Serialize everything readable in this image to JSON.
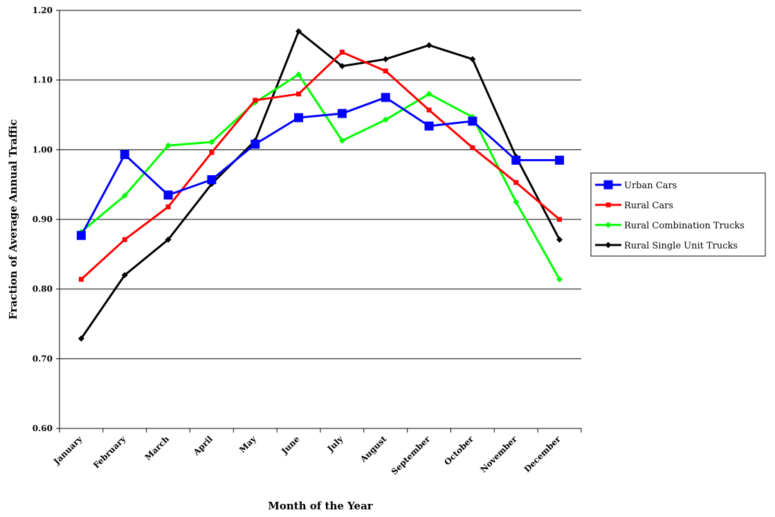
{
  "chart_data": {
    "type": "line",
    "title": "",
    "xlabel": "Month of the Year",
    "ylabel": "Fraction of Average Annual Traffic",
    "categories": [
      "January",
      "February",
      "March",
      "April",
      "May",
      "June",
      "July",
      "August",
      "September",
      "October",
      "November",
      "December"
    ],
    "y_ticks": [
      "0.60",
      "0.70",
      "0.80",
      "0.90",
      "1.00",
      "1.10",
      "1.20"
    ],
    "ylim": [
      0.6,
      1.2
    ],
    "grid": "horizontal",
    "legend_position": "right",
    "series": [
      {
        "name": "Urban Cars",
        "color": "#0000ff",
        "marker": "square",
        "values": [
          0.877,
          0.993,
          0.935,
          0.957,
          1.008,
          1.046,
          1.052,
          1.075,
          1.034,
          1.041,
          0.985,
          0.985
        ]
      },
      {
        "name": "Rural Cars",
        "color": "#ff0000",
        "marker": "small-square",
        "values": [
          0.814,
          0.871,
          0.918,
          0.996,
          1.071,
          1.08,
          1.14,
          1.113,
          1.057,
          1.003,
          0.953,
          0.9
        ]
      },
      {
        "name": "Rural Combination Trucks",
        "color": "#00ff00",
        "marker": "diamond",
        "values": [
          0.882,
          0.934,
          1.006,
          1.011,
          1.068,
          1.108,
          1.013,
          1.043,
          1.08,
          1.047,
          0.925,
          0.814
        ]
      },
      {
        "name": "Rural Single Unit Trucks",
        "color": "#000000",
        "marker": "diamond",
        "values": [
          0.729,
          0.82,
          0.871,
          0.951,
          1.013,
          1.17,
          1.12,
          1.13,
          1.15,
          1.13,
          0.99,
          0.871
        ]
      }
    ]
  }
}
